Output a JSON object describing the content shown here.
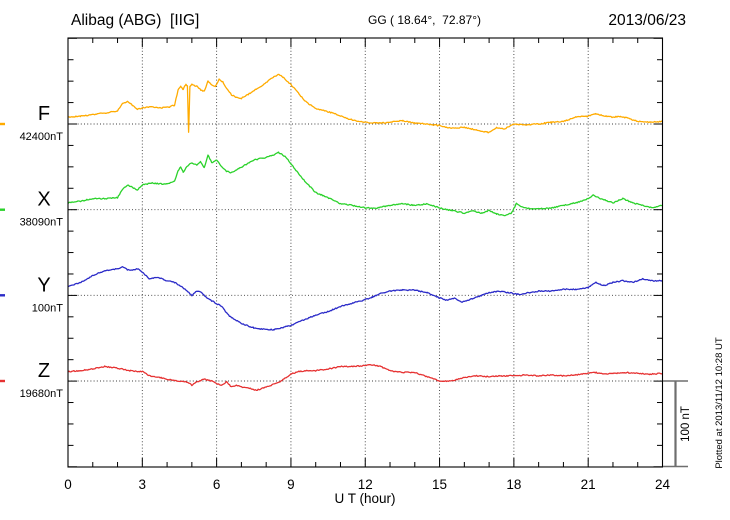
{
  "header": {
    "title": "Alibag (ABG)  [IIG]",
    "coordinates": "GG ( 18.64°,  72.87°)",
    "date": "2013/06/23"
  },
  "chart_data": {
    "type": "line",
    "title": "Alibag (ABG) [IIG] magnetogram",
    "station": {
      "name": "Alibag",
      "iaga_code": "ABG",
      "institute": "IIG"
    },
    "geographic_coordinates": {
      "lat_deg": 18.64,
      "lon_deg": 72.87
    },
    "date": "2013/06/23",
    "xlabel": "U T (hour)",
    "x_range": [
      0,
      24
    ],
    "x_ticks": [
      0,
      3,
      6,
      9,
      12,
      15,
      18,
      21,
      24
    ],
    "grid": "dotted vertical lines every 3 h; dotted horizontal line at each component baseline",
    "legend_position": "left margin, one colored label per trace",
    "y_axis": {
      "tick_interval_nT": 25,
      "baseline_spacing_nT": 100
    },
    "scale_bar": {
      "label": "100 nT",
      "nT": 100
    },
    "plotted_at": "Plotted at 2013/11/12 10:28 UT",
    "series": [
      {
        "name": "F",
        "baseline_label": "42400nT",
        "baseline_nT": 42400,
        "color": "#ffab00",
        "units": "nT deviation from baseline",
        "points": [
          [
            0,
            8
          ],
          [
            0.5,
            9
          ],
          [
            1,
            11
          ],
          [
            1.5,
            13
          ],
          [
            2,
            15
          ],
          [
            2.2,
            24
          ],
          [
            2.4,
            26
          ],
          [
            2.6,
            22
          ],
          [
            2.8,
            17
          ],
          [
            3,
            19
          ],
          [
            3.4,
            20
          ],
          [
            3.8,
            19
          ],
          [
            4.1,
            20
          ],
          [
            4.3,
            22
          ],
          [
            4.45,
            40
          ],
          [
            4.55,
            44
          ],
          [
            4.65,
            40
          ],
          [
            4.75,
            46
          ],
          [
            4.82,
            44
          ],
          [
            4.87,
            -10
          ],
          [
            4.92,
            44
          ],
          [
            5,
            46
          ],
          [
            5.2,
            44
          ],
          [
            5.35,
            40
          ],
          [
            5.5,
            38
          ],
          [
            5.65,
            50
          ],
          [
            5.8,
            46
          ],
          [
            5.95,
            44
          ],
          [
            6.1,
            52
          ],
          [
            6.25,
            49
          ],
          [
            6.4,
            42
          ],
          [
            6.6,
            34
          ],
          [
            6.8,
            31
          ],
          [
            7,
            30
          ],
          [
            7.3,
            35
          ],
          [
            7.6,
            41
          ],
          [
            7.9,
            46
          ],
          [
            8.2,
            53
          ],
          [
            8.5,
            58
          ],
          [
            8.7,
            54
          ],
          [
            9,
            46
          ],
          [
            9.3,
            36
          ],
          [
            9.6,
            26
          ],
          [
            10,
            18
          ],
          [
            10.4,
            15
          ],
          [
            10.8,
            12
          ],
          [
            11.2,
            7
          ],
          [
            11.6,
            4
          ],
          [
            12,
            2
          ],
          [
            12.5,
            1
          ],
          [
            13,
            2
          ],
          [
            13.5,
            4
          ],
          [
            14,
            1
          ],
          [
            14.5,
            0
          ],
          [
            15,
            -2
          ],
          [
            15.5,
            -5
          ],
          [
            16,
            -4
          ],
          [
            16.5,
            -7
          ],
          [
            17,
            -10
          ],
          [
            17.3,
            -4
          ],
          [
            17.6,
            -6
          ],
          [
            18,
            0
          ],
          [
            18.5,
            -1
          ],
          [
            19,
            0
          ],
          [
            19.5,
            2
          ],
          [
            20,
            3
          ],
          [
            20.5,
            8
          ],
          [
            21,
            9
          ],
          [
            21.3,
            12
          ],
          [
            21.7,
            9
          ],
          [
            22,
            8
          ],
          [
            22.3,
            9
          ],
          [
            22.7,
            6
          ],
          [
            23,
            3
          ],
          [
            23.5,
            2
          ],
          [
            24,
            3
          ]
        ]
      },
      {
        "name": "X",
        "baseline_label": "38090nT",
        "baseline_nT": 38090,
        "color": "#2bd22b",
        "units": "nT deviation from baseline",
        "points": [
          [
            0,
            8
          ],
          [
            0.5,
            10
          ],
          [
            1,
            13
          ],
          [
            1.5,
            13
          ],
          [
            2,
            14
          ],
          [
            2.2,
            24
          ],
          [
            2.4,
            29
          ],
          [
            2.6,
            26
          ],
          [
            2.8,
            23
          ],
          [
            3,
            29
          ],
          [
            3.4,
            31
          ],
          [
            3.8,
            30
          ],
          [
            4.1,
            31
          ],
          [
            4.3,
            33
          ],
          [
            4.45,
            46
          ],
          [
            4.55,
            50
          ],
          [
            4.65,
            44
          ],
          [
            4.8,
            50
          ],
          [
            5,
            55
          ],
          [
            5.2,
            52
          ],
          [
            5.35,
            56
          ],
          [
            5.5,
            49
          ],
          [
            5.65,
            64
          ],
          [
            5.8,
            55
          ],
          [
            6,
            58
          ],
          [
            6.2,
            50
          ],
          [
            6.4,
            45
          ],
          [
            6.6,
            43
          ],
          [
            6.9,
            48
          ],
          [
            7.2,
            53
          ],
          [
            7.5,
            58
          ],
          [
            8,
            61
          ],
          [
            8.3,
            64
          ],
          [
            8.5,
            67
          ],
          [
            8.8,
            61
          ],
          [
            9.2,
            46
          ],
          [
            9.6,
            32
          ],
          [
            10,
            20
          ],
          [
            10.5,
            14
          ],
          [
            11,
            7
          ],
          [
            11.5,
            5
          ],
          [
            12,
            2
          ],
          [
            12.5,
            2
          ],
          [
            13,
            5
          ],
          [
            13.5,
            7
          ],
          [
            14,
            5
          ],
          [
            14.5,
            7
          ],
          [
            15,
            2
          ],
          [
            15.5,
            -1
          ],
          [
            16,
            -4
          ],
          [
            16.3,
            -1
          ],
          [
            16.7,
            -4
          ],
          [
            17,
            -1
          ],
          [
            17.3,
            -5
          ],
          [
            17.6,
            -7
          ],
          [
            17.9,
            -4
          ],
          [
            18.1,
            7
          ],
          [
            18.4,
            2
          ],
          [
            19,
            1
          ],
          [
            19.5,
            2
          ],
          [
            20,
            5
          ],
          [
            20.5,
            8
          ],
          [
            21,
            13
          ],
          [
            21.2,
            17
          ],
          [
            21.5,
            13
          ],
          [
            22,
            8
          ],
          [
            22.4,
            13
          ],
          [
            22.8,
            8
          ],
          [
            23.2,
            5
          ],
          [
            23.6,
            2
          ],
          [
            24,
            5
          ]
        ]
      },
      {
        "name": "Y",
        "baseline_label": "100nT",
        "baseline_nT": 100,
        "color": "#2b2bc8",
        "units": "nT deviation from baseline",
        "points": [
          [
            0,
            10
          ],
          [
            0.5,
            15
          ],
          [
            1,
            23
          ],
          [
            1.5,
            29
          ],
          [
            2,
            31
          ],
          [
            2.2,
            33
          ],
          [
            2.4,
            30
          ],
          [
            2.6,
            29
          ],
          [
            2.8,
            31
          ],
          [
            3,
            27
          ],
          [
            3.3,
            19
          ],
          [
            3.6,
            21
          ],
          [
            4,
            17
          ],
          [
            4.3,
            15
          ],
          [
            4.6,
            10
          ],
          [
            5,
            0
          ],
          [
            5.2,
            5
          ],
          [
            5.4,
            3
          ],
          [
            5.6,
            -3
          ],
          [
            5.9,
            -8
          ],
          [
            6.2,
            -13
          ],
          [
            6.5,
            -24
          ],
          [
            7,
            -33
          ],
          [
            7.5,
            -38
          ],
          [
            8,
            -40
          ],
          [
            8.3,
            -40
          ],
          [
            8.6,
            -38
          ],
          [
            9,
            -35
          ],
          [
            9.5,
            -29
          ],
          [
            10,
            -23
          ],
          [
            10.5,
            -19
          ],
          [
            11,
            -13
          ],
          [
            11.5,
            -9
          ],
          [
            12,
            -5
          ],
          [
            12.3,
            -2
          ],
          [
            12.6,
            2
          ],
          [
            13,
            5
          ],
          [
            13.5,
            6
          ],
          [
            14,
            6
          ],
          [
            14.5,
            3
          ],
          [
            15,
            -3
          ],
          [
            15.3,
            -6
          ],
          [
            15.6,
            -3
          ],
          [
            15.9,
            -8
          ],
          [
            16.2,
            -5
          ],
          [
            16.6,
            -1
          ],
          [
            17,
            3
          ],
          [
            17.4,
            5
          ],
          [
            17.8,
            3
          ],
          [
            18.2,
            1
          ],
          [
            18.6,
            3
          ],
          [
            19,
            5
          ],
          [
            19.5,
            5
          ],
          [
            20,
            7
          ],
          [
            20.5,
            7
          ],
          [
            21,
            9
          ],
          [
            21.3,
            15
          ],
          [
            21.6,
            11
          ],
          [
            22,
            15
          ],
          [
            22.4,
            17
          ],
          [
            22.8,
            15
          ],
          [
            23.2,
            19
          ],
          [
            23.6,
            17
          ],
          [
            24,
            17
          ]
        ]
      },
      {
        "name": "Z",
        "baseline_label": "19680nT",
        "baseline_nT": 19680,
        "color": "#e63232",
        "units": "nT deviation from baseline",
        "points": [
          [
            0,
            11
          ],
          [
            0.5,
            12
          ],
          [
            1,
            14
          ],
          [
            1.5,
            17
          ],
          [
            2,
            15
          ],
          [
            2.5,
            12
          ],
          [
            3,
            11
          ],
          [
            3.3,
            6
          ],
          [
            3.6,
            5
          ],
          [
            4,
            2
          ],
          [
            4.5,
            0
          ],
          [
            4.8,
            -1
          ],
          [
            5,
            -5
          ],
          [
            5.2,
            -1
          ],
          [
            5.5,
            2
          ],
          [
            5.8,
            0
          ],
          [
            6,
            -3
          ],
          [
            6.2,
            -5
          ],
          [
            6.4,
            -1
          ],
          [
            6.6,
            -7
          ],
          [
            6.8,
            -5
          ],
          [
            7,
            -7
          ],
          [
            7.3,
            -8
          ],
          [
            7.6,
            -11
          ],
          [
            7.9,
            -8
          ],
          [
            8.2,
            -5
          ],
          [
            8.6,
            0
          ],
          [
            9,
            8
          ],
          [
            9.3,
            11
          ],
          [
            9.6,
            12
          ],
          [
            10,
            12
          ],
          [
            10.5,
            14
          ],
          [
            11,
            17
          ],
          [
            11.5,
            17
          ],
          [
            12,
            18
          ],
          [
            12.3,
            19
          ],
          [
            12.6,
            17
          ],
          [
            13,
            12
          ],
          [
            13.5,
            10
          ],
          [
            14,
            10
          ],
          [
            14.3,
            7
          ],
          [
            14.6,
            4
          ],
          [
            15,
            0
          ],
          [
            15.3,
            0
          ],
          [
            15.6,
            1
          ],
          [
            16,
            4
          ],
          [
            16.5,
            6
          ],
          [
            17,
            5
          ],
          [
            17.5,
            6
          ],
          [
            18,
            6
          ],
          [
            18.5,
            7
          ],
          [
            19,
            6
          ],
          [
            19.5,
            7
          ],
          [
            20,
            6
          ],
          [
            20.5,
            7
          ],
          [
            21,
            9
          ],
          [
            21.3,
            10
          ],
          [
            21.6,
            8
          ],
          [
            22,
            9
          ],
          [
            22.5,
            10
          ],
          [
            23,
            9
          ],
          [
            23.5,
            8
          ],
          [
            24,
            9
          ]
        ]
      }
    ]
  }
}
